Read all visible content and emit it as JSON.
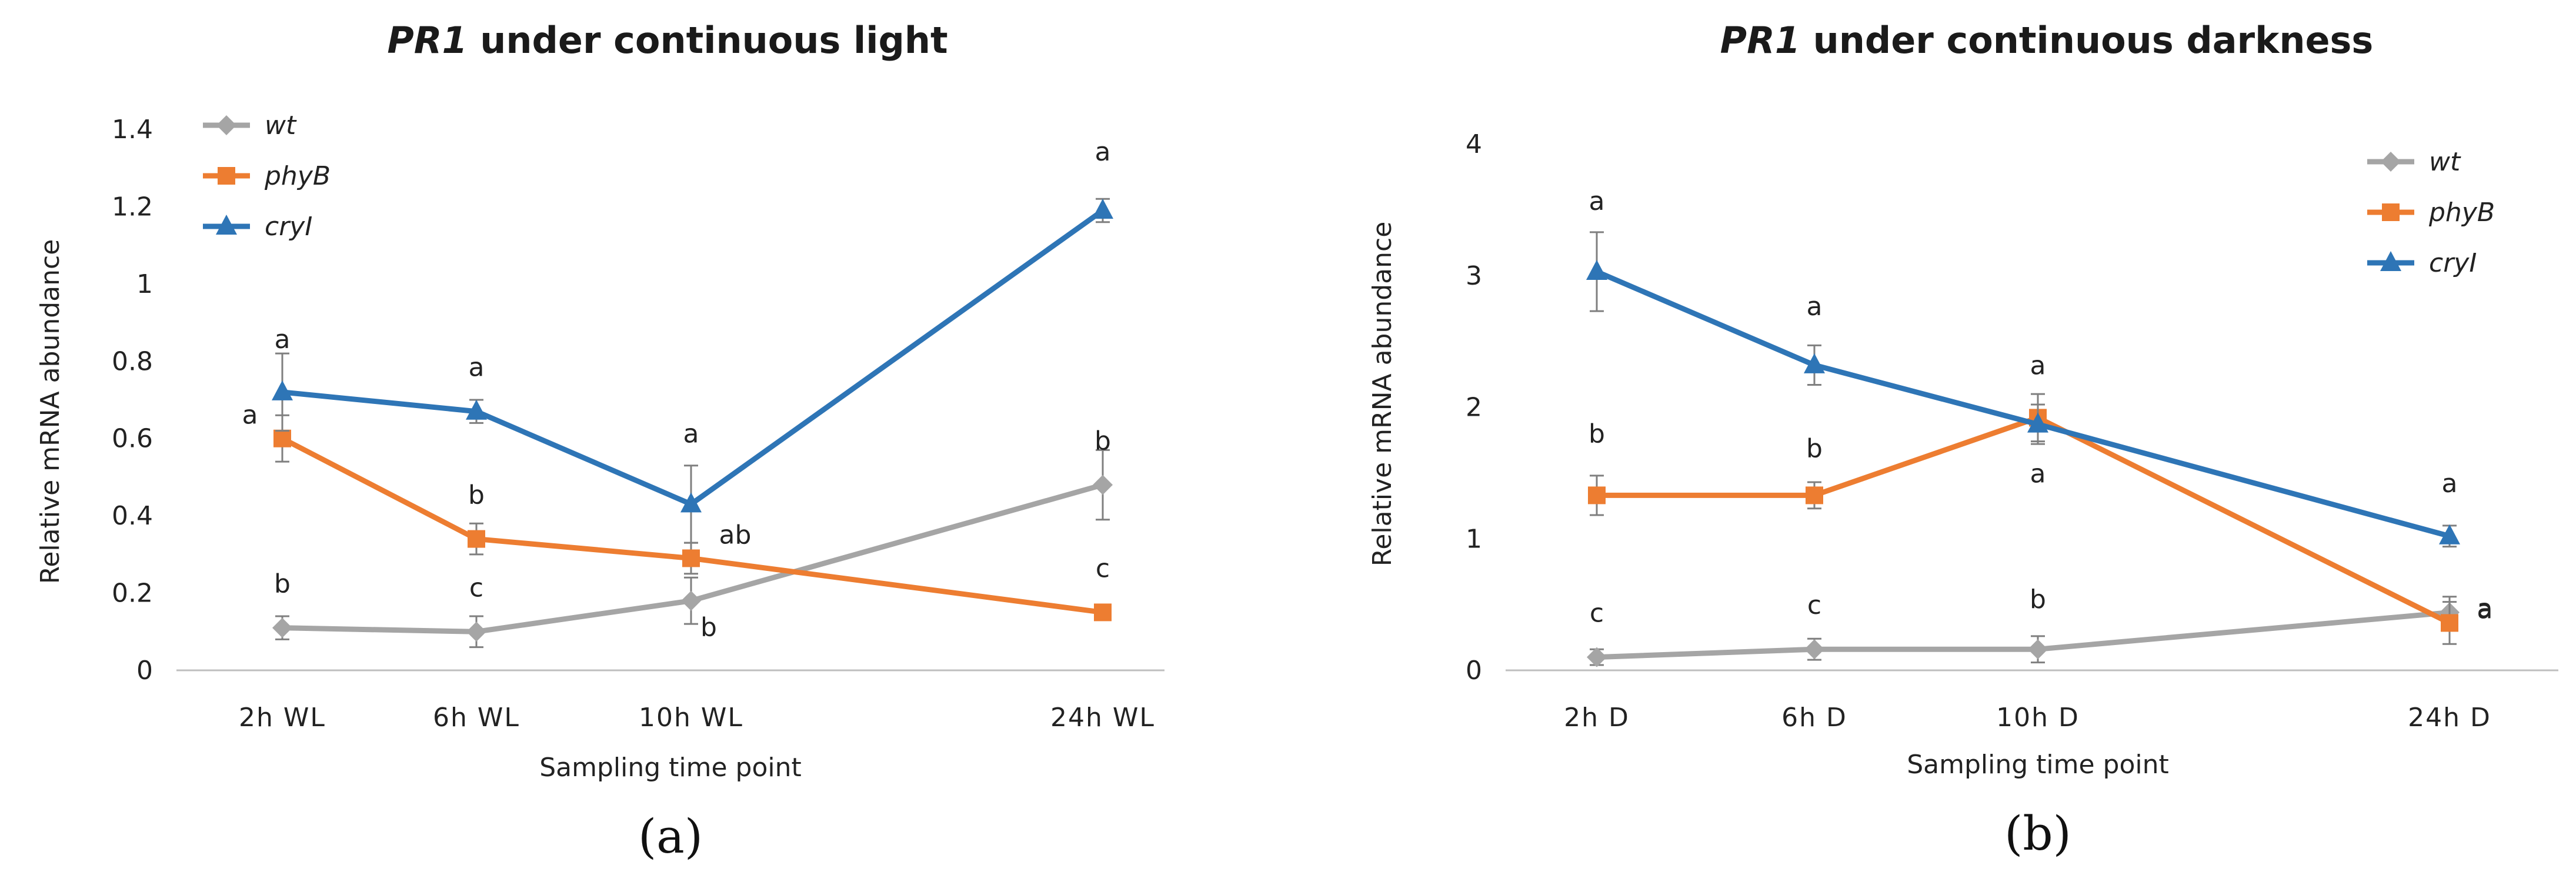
{
  "colors": {
    "wt": "#a5a5a5",
    "phyB": "#ed7d31",
    "cryI": "#2e75b6"
  },
  "chart_data": [
    {
      "type": "line",
      "panel_label": "(a)",
      "title_italic": "PR1",
      "title_rest": " under continuous light",
      "xlabel": "Sampling time point",
      "ylabel": "Relative mRNA abundance",
      "categories": [
        "2h  WL",
        "6h  WL",
        "10h  WL",
        "24h  WL"
      ],
      "x_hours": [
        2,
        6,
        10,
        24
      ],
      "ylim": [
        0,
        1.4
      ],
      "yticks": [
        "0",
        "0.2",
        "0.4",
        "0.6",
        "0.8",
        "1",
        "1.2",
        "1.4"
      ],
      "ytick_values": [
        0,
        0.2,
        0.4,
        0.6,
        0.8,
        1.0,
        1.2,
        1.4
      ],
      "legend_position": "top-left",
      "series": [
        {
          "name": "wt",
          "marker": "diamond",
          "values": [
            0.11,
            0.1,
            0.18,
            0.48
          ],
          "errors": [
            0.03,
            0.04,
            0.06,
            0.09
          ],
          "labels": [
            "b",
            "c",
            "b",
            "b"
          ]
        },
        {
          "name": "phyB",
          "marker": "square",
          "values": [
            0.6,
            0.34,
            0.29,
            0.15
          ],
          "errors": [
            0.06,
            0.04,
            0.04,
            0.01
          ],
          "labels": [
            "a",
            "b",
            "ab",
            "c"
          ]
        },
        {
          "name": "cryI",
          "marker": "triangle",
          "values": [
            0.72,
            0.67,
            0.43,
            1.19
          ],
          "errors": [
            0.1,
            0.03,
            0.1,
            0.03
          ],
          "labels": [
            "a",
            "a",
            "a",
            "a"
          ]
        }
      ]
    },
    {
      "type": "line",
      "panel_label": "(b)",
      "title_italic": "PR1",
      "title_rest": " under continuous darkness",
      "xlabel": "Sampling time point",
      "ylabel": "Relative mRNA abundance",
      "categories": [
        "2h  D",
        "6h  D",
        "10h  D",
        "24h  D"
      ],
      "x_hours": [
        2,
        6,
        10,
        24
      ],
      "ylim": [
        0,
        4
      ],
      "yticks": [
        "0",
        "1",
        "2",
        "3",
        "4"
      ],
      "ytick_values": [
        0,
        1,
        2,
        3,
        4
      ],
      "legend_position": "top-right",
      "series": [
        {
          "name": "wt",
          "marker": "diamond",
          "values": [
            0.1,
            0.16,
            0.16,
            0.44
          ],
          "errors": [
            0.06,
            0.08,
            0.1,
            0.12
          ],
          "labels": [
            "c",
            "c",
            "b",
            "a"
          ]
        },
        {
          "name": "phyB",
          "marker": "square",
          "values": [
            1.33,
            1.33,
            1.92,
            0.36
          ],
          "errors": [
            0.15,
            0.1,
            0.18,
            0.16
          ],
          "labels": [
            "b",
            "b",
            "a",
            "a"
          ]
        },
        {
          "name": "cryI",
          "marker": "triangle",
          "values": [
            3.03,
            2.32,
            1.87,
            1.02
          ],
          "errors": [
            0.3,
            0.15,
            0.15,
            0.08
          ],
          "labels": [
            "a",
            "a",
            "a",
            "a"
          ]
        }
      ]
    }
  ]
}
